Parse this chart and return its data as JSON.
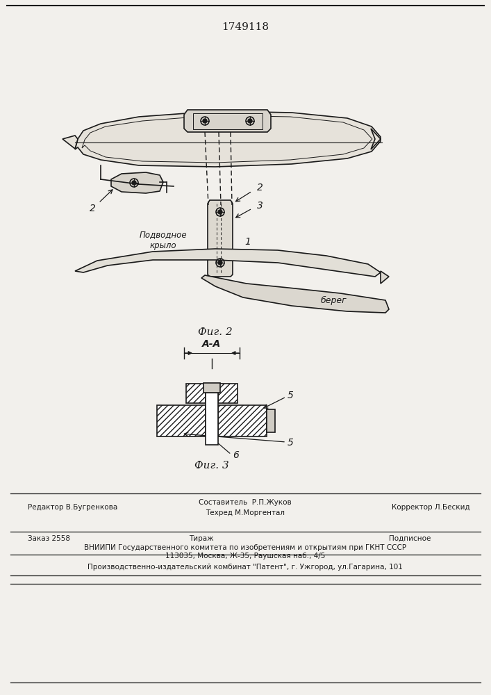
{
  "patent_number": "1749118",
  "fig2_caption": "Фиг. 2",
  "fig3_caption": "Фиг. 3",
  "section_label": "А-А",
  "label1": "1",
  "label2": "2",
  "label3": "3",
  "label5a": "5",
  "label5b": "5",
  "label6": "6",
  "text_podvodnoe": "Подводное",
  "text_krylo": "крыло",
  "text_bereg": "берег",
  "editor_line": "Редактор В.Бугренкова",
  "compiler_line": "Составитель  Р.П.Жуков",
  "techred_line": "Техред М.Моргентал",
  "corrector_line": "Корректор Л.Бескид",
  "order_line": "Заказ 2558",
  "tirazh_line": "Тираж",
  "podpisnoe_line": "Подписное",
  "vniiipi_line": "ВНИИПИ Государственного комитета по изобретениям и открытиям при ГКНТ СССР",
  "address_line": "113035, Москва, Ж-35, Раушская наб., 4/5",
  "factory_line": "Производственно-издательский комбинат \"Патент\", г. Ужгород, ул.Гагарина, 101",
  "bg_color": "#f2f0ec",
  "line_color": "#1a1a1a"
}
